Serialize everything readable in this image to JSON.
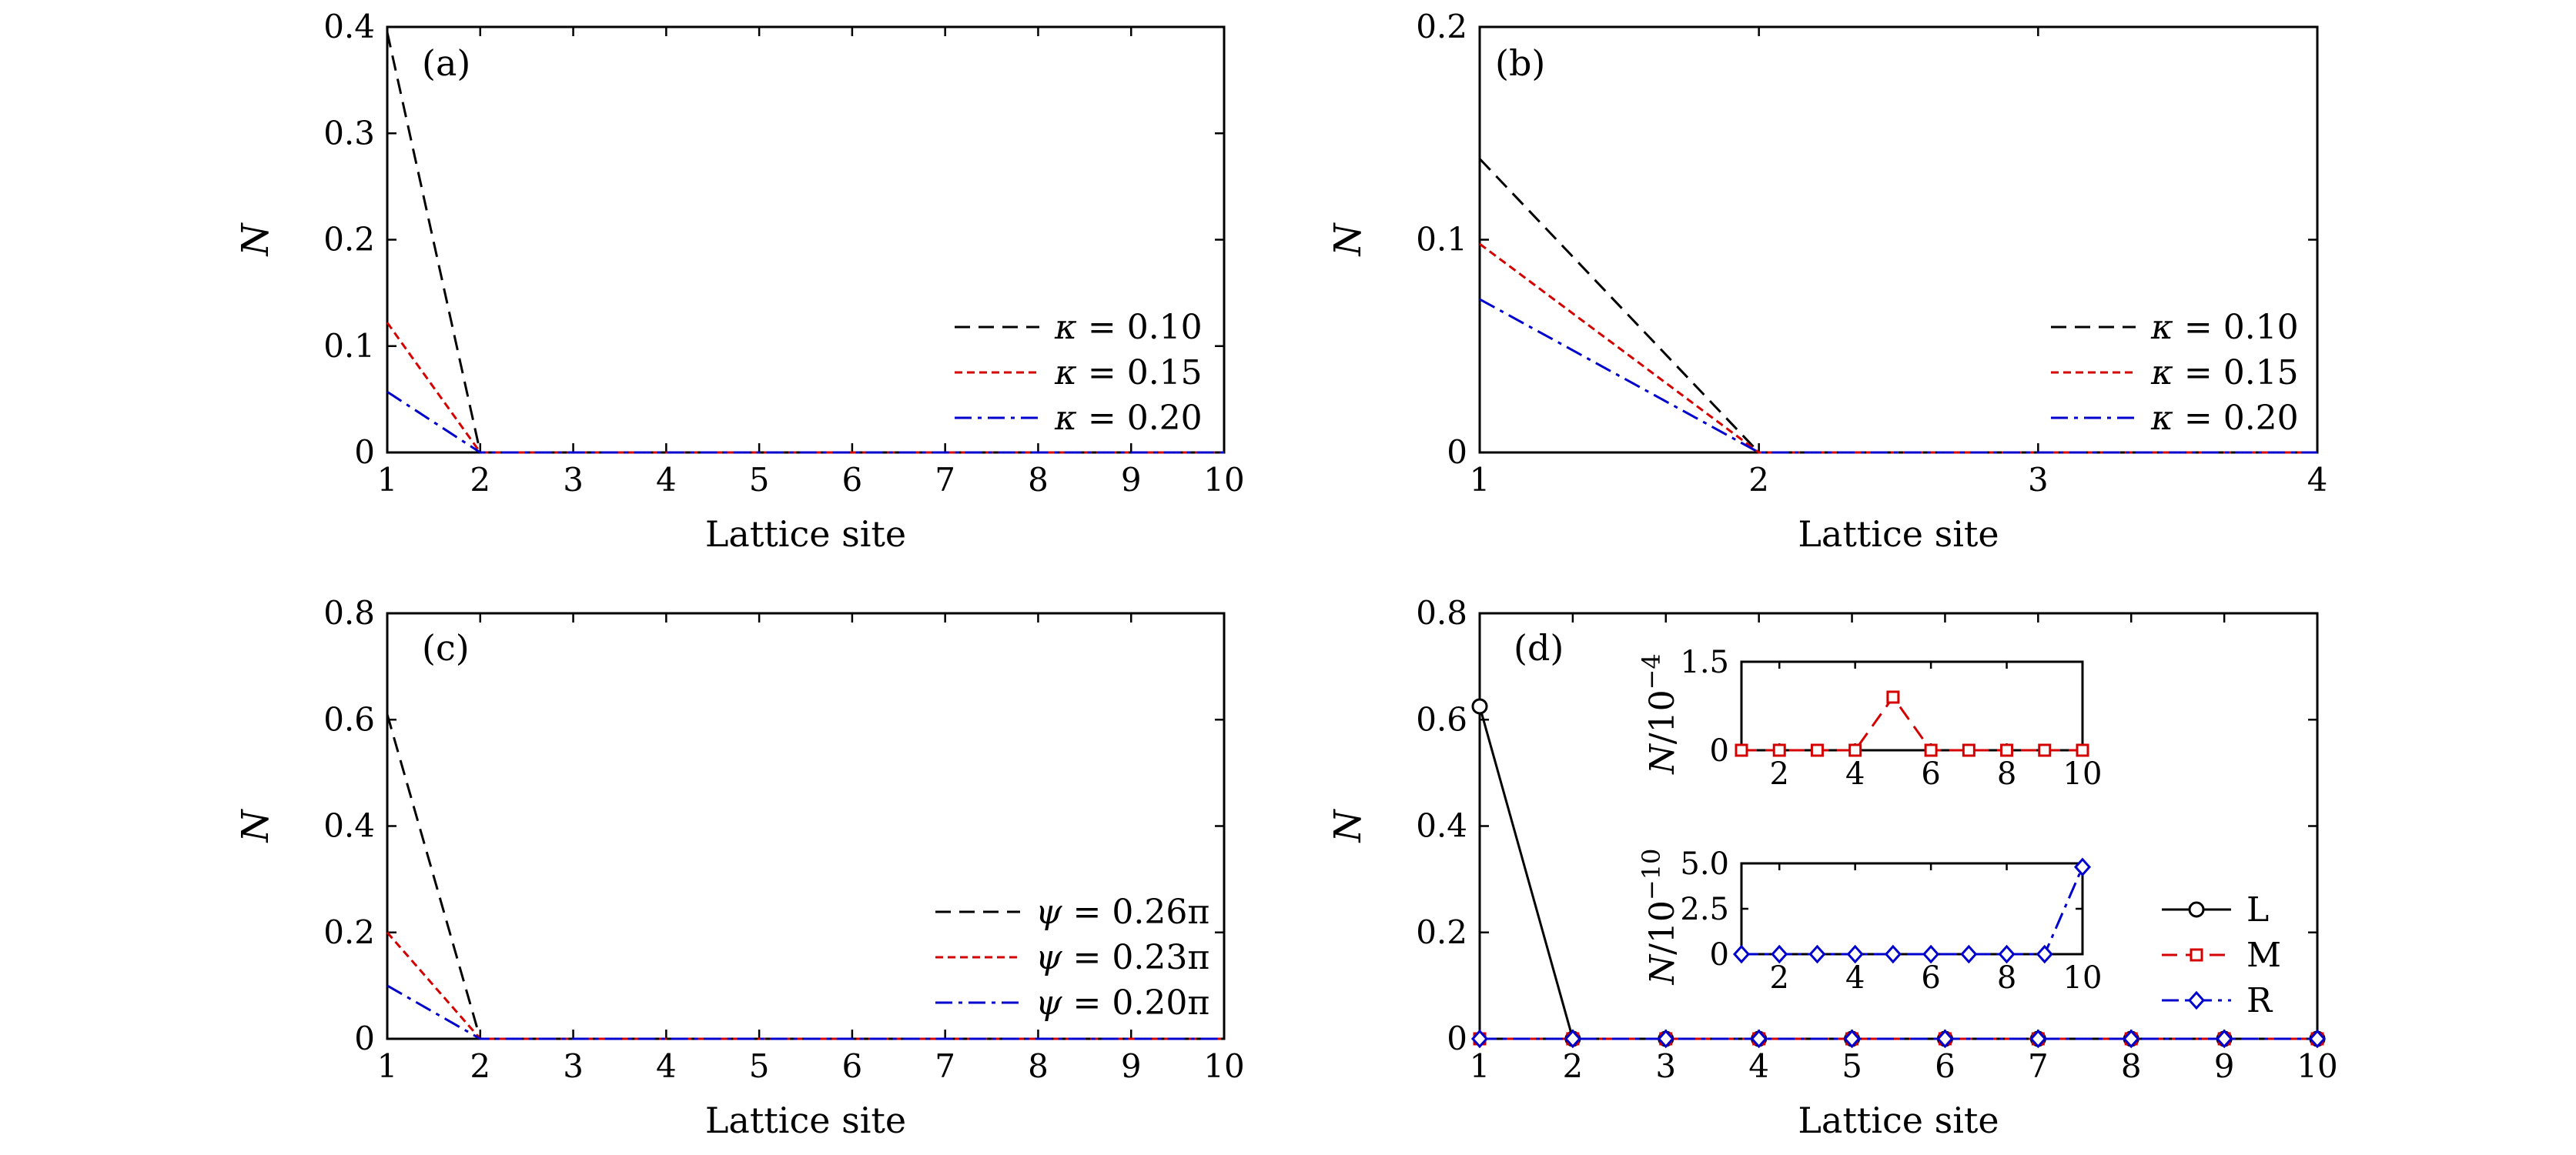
{
  "chart_data": [
    {
      "id": "a",
      "type": "line",
      "panel_label": "(a)",
      "xlabel": "Lattice site",
      "ylabel": "N",
      "xlim": [
        1,
        10
      ],
      "ylim": [
        0,
        0.4
      ],
      "xticks": [
        "1",
        "2",
        "3",
        "4",
        "5",
        "6",
        "7",
        "8",
        "9",
        "10"
      ],
      "yticks": [
        "0",
        "0.1",
        "0.2",
        "0.3",
        "0.4"
      ],
      "legend_position": "right",
      "series": [
        {
          "name": "κ = 0.10",
          "color": "#000000",
          "dash": "dashed",
          "x": [
            1,
            2,
            3,
            4,
            5,
            6,
            7,
            8,
            9,
            10
          ],
          "y": [
            0.395,
            0,
            0,
            0,
            0,
            0,
            0,
            0,
            0,
            0
          ]
        },
        {
          "name": "κ = 0.15",
          "color": "#d40000",
          "dash": "dotted",
          "x": [
            1,
            2,
            3,
            4,
            5,
            6,
            7,
            8,
            9,
            10
          ],
          "y": [
            0.122,
            0,
            0,
            0,
            0,
            0,
            0,
            0,
            0,
            0
          ]
        },
        {
          "name": "κ = 0.20",
          "color": "#0000cc",
          "dash": "dashdot",
          "x": [
            1,
            2,
            3,
            4,
            5,
            6,
            7,
            8,
            9,
            10
          ],
          "y": [
            0.057,
            0,
            0,
            0,
            0,
            0,
            0,
            0,
            0,
            0
          ]
        }
      ]
    },
    {
      "id": "b",
      "type": "line",
      "panel_label": "(b)",
      "xlabel": "Lattice site",
      "ylabel": "N",
      "xlim": [
        1,
        4
      ],
      "ylim": [
        0,
        0.2
      ],
      "xticks": [
        "1",
        "2",
        "3",
        "4"
      ],
      "yticks": [
        "0",
        "0.1",
        "0.2"
      ],
      "legend_position": "right",
      "series": [
        {
          "name": "κ = 0.10",
          "color": "#000000",
          "dash": "dashed",
          "x": [
            1,
            2,
            3,
            4
          ],
          "y": [
            0.138,
            0,
            0,
            0
          ]
        },
        {
          "name": "κ = 0.15",
          "color": "#d40000",
          "dash": "dotted",
          "x": [
            1,
            2,
            3,
            4
          ],
          "y": [
            0.098,
            0,
            0,
            0
          ]
        },
        {
          "name": "κ = 0.20",
          "color": "#0000cc",
          "dash": "dashdot",
          "x": [
            1,
            2,
            3,
            4
          ],
          "y": [
            0.072,
            0,
            0,
            0
          ]
        }
      ]
    },
    {
      "id": "c",
      "type": "line",
      "panel_label": "(c)",
      "xlabel": "Lattice site",
      "ylabel": "N",
      "xlim": [
        1,
        10
      ],
      "ylim": [
        0,
        0.8
      ],
      "xticks": [
        "1",
        "2",
        "3",
        "4",
        "5",
        "6",
        "7",
        "8",
        "9",
        "10"
      ],
      "yticks": [
        "0",
        "0.2",
        "0.4",
        "0.6",
        "0.8"
      ],
      "legend_position": "right",
      "series": [
        {
          "name": "ψ = 0.26π",
          "color": "#000000",
          "dash": "dashed",
          "x": [
            1,
            2,
            3,
            4,
            5,
            6,
            7,
            8,
            9,
            10
          ],
          "y": [
            0.61,
            0,
            0,
            0,
            0,
            0,
            0,
            0,
            0,
            0
          ]
        },
        {
          "name": "ψ = 0.23π",
          "color": "#d40000",
          "dash": "dotted",
          "x": [
            1,
            2,
            3,
            4,
            5,
            6,
            7,
            8,
            9,
            10
          ],
          "y": [
            0.2,
            0,
            0,
            0,
            0,
            0,
            0,
            0,
            0,
            0
          ]
        },
        {
          "name": "ψ = 0.20π",
          "color": "#0000cc",
          "dash": "dashdot",
          "x": [
            1,
            2,
            3,
            4,
            5,
            6,
            7,
            8,
            9,
            10
          ],
          "y": [
            0.1,
            0,
            0,
            0,
            0,
            0,
            0,
            0,
            0,
            0
          ]
        }
      ]
    },
    {
      "id": "d",
      "type": "line",
      "panel_label": "(d)",
      "xlabel": "Lattice site",
      "ylabel": "N",
      "xlim": [
        1,
        10
      ],
      "ylim": [
        0,
        0.8
      ],
      "xticks": [
        "1",
        "2",
        "3",
        "4",
        "5",
        "6",
        "7",
        "8",
        "9",
        "10"
      ],
      "yticks": [
        "0",
        "0.2",
        "0.4",
        "0.6",
        "0.8"
      ],
      "legend_position": "lower-right",
      "series": [
        {
          "name": "L",
          "color": "#000000",
          "dash": "solid",
          "marker": "circle",
          "x": [
            1,
            2,
            3,
            4,
            5,
            6,
            7,
            8,
            9,
            10
          ],
          "y": [
            0.625,
            0,
            0,
            0,
            0,
            0,
            0,
            0,
            0,
            0
          ]
        },
        {
          "name": "M",
          "color": "#d40000",
          "dash": "dashed",
          "marker": "square",
          "x": [
            1,
            2,
            3,
            4,
            5,
            6,
            7,
            8,
            9,
            10
          ],
          "y": [
            0,
            0,
            0,
            0,
            0,
            0,
            0,
            0,
            0,
            0
          ]
        },
        {
          "name": "R",
          "color": "#0000cc",
          "dash": "dashdot",
          "marker": "diamond",
          "x": [
            1,
            2,
            3,
            4,
            5,
            6,
            7,
            8,
            9,
            10
          ],
          "y": [
            0,
            0,
            0,
            0,
            0,
            0,
            0,
            0,
            0,
            0
          ]
        }
      ]
    },
    {
      "id": "d-inset-top",
      "type": "line",
      "ylabel": "N/10",
      "ylabel_exp": "−4",
      "xlim": [
        1,
        10
      ],
      "ylim": [
        0,
        1.5
      ],
      "xticks": [
        "2",
        "4",
        "6",
        "8",
        "10"
      ],
      "yticks": [
        "0",
        "1.5"
      ],
      "series": [
        {
          "name": "M",
          "color": "#d40000",
          "dash": "dashed",
          "marker": "square",
          "x": [
            1,
            2,
            3,
            4,
            5,
            6,
            7,
            8,
            9,
            10
          ],
          "y": [
            0,
            0,
            0,
            0,
            0.9,
            0,
            0,
            0,
            0,
            0
          ]
        }
      ]
    },
    {
      "id": "d-inset-bottom",
      "type": "line",
      "ylabel": "N/10",
      "ylabel_exp": "−10",
      "xlim": [
        1,
        10
      ],
      "ylim": [
        0,
        5.0
      ],
      "xticks": [
        "2",
        "4",
        "6",
        "8",
        "10"
      ],
      "yticks": [
        "0",
        "2.5",
        "5.0"
      ],
      "series": [
        {
          "name": "R",
          "color": "#0000cc",
          "dash": "dashdot",
          "marker": "diamond",
          "x": [
            1,
            2,
            3,
            4,
            5,
            6,
            7,
            8,
            9,
            10
          ],
          "y": [
            0,
            0,
            0,
            0,
            0,
            0,
            0,
            0,
            0,
            4.8
          ]
        }
      ]
    }
  ]
}
